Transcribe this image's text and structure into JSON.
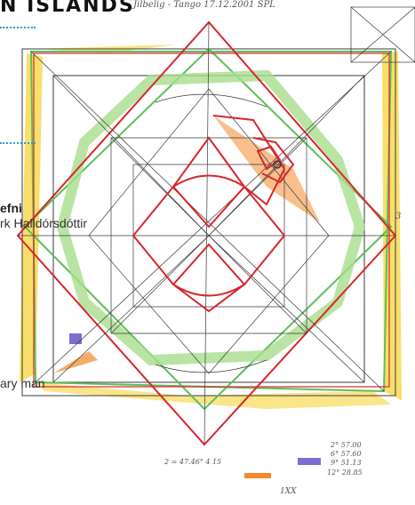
{
  "header": {
    "title": "N ISLANDS",
    "handwritten_note": "Jilbelig - Tango 17.12.2001 SPL"
  },
  "caption": {
    "name_suffix": "efni",
    "author_fragment": "rk Halldórsdóttir",
    "description_fragment": "ary man"
  },
  "drawing": {
    "annotations": {
      "bottom_center": "2 = 47.46° 4 15",
      "legend_a": "2° 57.00",
      "legend_b": "6° 57.60",
      "legend_c": "9° 51.13",
      "legend_d": "12° 28.85",
      "bottom_mark": "1XX",
      "right_mark": "3"
    },
    "colors": {
      "red": "#d8262b",
      "green": "#5cbf5a",
      "light_green": "#a8dd8c",
      "orange": "#f28a2a",
      "yellow": "#f6d43a",
      "purple": "#7a6fd0",
      "pencil": "#3a3a3a",
      "dotted_blue": "#2a9fd6"
    }
  }
}
